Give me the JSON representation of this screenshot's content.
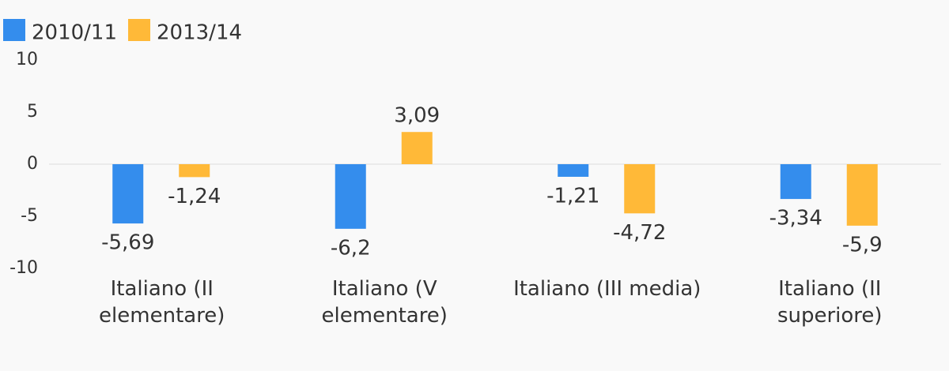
{
  "chart_data": {
    "type": "bar",
    "categories": [
      "Italiano (II elementare)",
      "Italiano (V elementare)",
      "Italiano (III media)",
      "Italiano (II superiore)"
    ],
    "series": [
      {
        "name": "2010/11",
        "color": "#348ded",
        "values": [
          -5.69,
          -6.2,
          -1.21,
          -3.34
        ],
        "value_labels": [
          "-5,69",
          "-6,2",
          "-1,21",
          "-3,34"
        ]
      },
      {
        "name": "2013/14",
        "color": "#ffb938",
        "values": [
          -1.24,
          3.09,
          -4.72,
          -5.9
        ],
        "value_labels": [
          "-1,24",
          "3,09",
          "-4,72",
          "-5,9"
        ]
      }
    ],
    "ylim": [
      -10,
      10
    ],
    "yticks": [
      -10,
      -5,
      0,
      5,
      10
    ],
    "grid": false,
    "legend": "top-left"
  }
}
